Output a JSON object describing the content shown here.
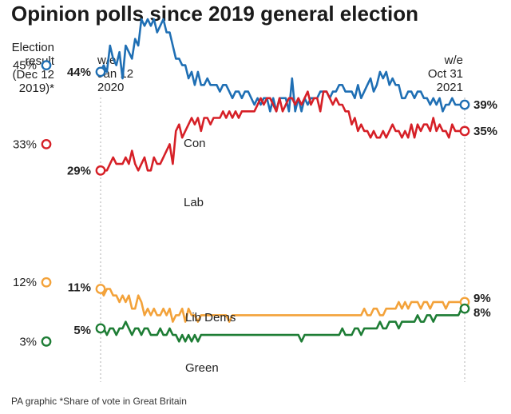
{
  "title": "Opinion polls since 2019 general election",
  "election_header": [
    "Election",
    "result",
    "(Dec 12",
    "2019)*"
  ],
  "start_header": [
    "w/e",
    "Jan 12",
    "2020"
  ],
  "end_header": [
    "w/e",
    "Oct 31",
    "2021"
  ],
  "footer": "PA graphic *Share of vote in Great Britain",
  "colors": {
    "Con": "#1f6fb4",
    "Lab": "#d62027",
    "Lib Dems": "#f3a23a",
    "Green": "#1e7d35",
    "rule": "#cccccc"
  },
  "chart_data": {
    "type": "line",
    "x_start": "2020-01-12",
    "x_end": "2021-10-31",
    "ylim": [
      0,
      55
    ],
    "grid": false,
    "election_result": {
      "Con": 45,
      "Lab": 33,
      "Lib Dems": 12,
      "Green": 3
    },
    "labels": {
      "election": {
        "Con": "45%",
        "Lab": "33%",
        "Lib Dems": "12%",
        "Green": "3%"
      },
      "start": {
        "Con": "44%",
        "Lab": "29%",
        "Lib Dems": "11%",
        "Green": "5%"
      },
      "end": {
        "Con": "39%",
        "Lab": "35%",
        "Lib Dems": "9%",
        "Green": "8%"
      }
    },
    "series": [
      {
        "name": "Con",
        "values": [
          44,
          45,
          44,
          48,
          46,
          45,
          47,
          43,
          48,
          47,
          46,
          49,
          48,
          52,
          51,
          52,
          51,
          52,
          50,
          51,
          52,
          50,
          50,
          48,
          46,
          46,
          45,
          45,
          43,
          44,
          42,
          44,
          42,
          42,
          43,
          42,
          42,
          42,
          41,
          42,
          42,
          41,
          40,
          41,
          41,
          40,
          41,
          41,
          40,
          39,
          40,
          39,
          40,
          40,
          38,
          40,
          38,
          40,
          40,
          40,
          38,
          43,
          38,
          40,
          38,
          40,
          39,
          40,
          40,
          40,
          41,
          41,
          41,
          40,
          41,
          41,
          42,
          42,
          41,
          41,
          41,
          40,
          42,
          40,
          41,
          42,
          43,
          41,
          42,
          44,
          43,
          44,
          42,
          43,
          42,
          42,
          40,
          40,
          41,
          41,
          40,
          41,
          41,
          40,
          40,
          39,
          40,
          39,
          40,
          38,
          39,
          39,
          40,
          39,
          39,
          39,
          39
        ]
      },
      {
        "name": "Lab",
        "values": [
          29,
          29,
          29,
          30,
          31,
          30,
          30,
          30,
          31,
          30,
          32,
          30,
          29,
          30,
          31,
          29,
          29,
          31,
          30,
          30,
          31,
          32,
          33,
          30,
          35,
          36,
          34,
          35,
          36,
          37,
          36,
          37,
          35,
          37,
          37,
          36,
          37,
          37,
          37,
          38,
          37,
          38,
          37,
          38,
          37,
          38,
          38,
          38,
          38,
          38,
          39,
          40,
          39,
          40,
          40,
          39,
          38,
          40,
          38,
          39,
          40,
          40,
          39,
          40,
          39,
          40,
          41,
          39,
          40,
          40,
          38,
          41,
          41,
          40,
          39,
          40,
          39,
          39,
          38,
          38,
          36,
          37,
          35,
          36,
          35,
          35,
          34,
          35,
          34,
          34,
          35,
          34,
          35,
          36,
          35,
          35,
          34,
          35,
          34,
          36,
          34,
          36,
          35,
          36,
          36,
          35,
          37,
          35,
          36,
          35,
          35,
          34,
          36,
          35,
          35,
          35,
          35
        ]
      },
      {
        "name": "Lib Dems",
        "values": [
          11,
          10,
          11,
          11,
          10,
          10,
          9,
          10,
          9,
          10,
          8,
          8,
          10,
          9,
          7,
          8,
          7,
          8,
          7,
          7,
          8,
          7,
          8,
          6,
          7,
          7,
          8,
          6,
          8,
          7,
          7,
          6,
          7,
          7,
          7,
          7,
          7,
          7,
          7,
          7,
          7,
          6,
          7,
          7,
          7,
          7,
          7,
          7,
          7,
          7,
          7,
          7,
          7,
          7,
          7,
          7,
          7,
          7,
          7,
          7,
          7,
          7,
          7,
          7,
          7,
          7,
          7,
          7,
          7,
          7,
          7,
          7,
          7,
          7,
          7,
          7,
          7,
          7,
          7,
          7,
          7,
          7,
          7,
          7,
          8,
          7,
          7,
          8,
          8,
          7,
          7,
          8,
          8,
          8,
          8,
          9,
          8,
          9,
          8,
          9,
          9,
          9,
          8,
          9,
          9,
          8,
          9,
          9,
          9,
          9,
          8,
          9,
          9,
          9,
          9,
          9,
          9
        ]
      },
      {
        "name": "Green",
        "values": [
          5,
          5,
          4,
          5,
          5,
          4,
          5,
          5,
          6,
          5,
          4,
          5,
          5,
          4,
          5,
          5,
          4,
          4,
          4,
          5,
          4,
          4,
          5,
          4,
          4,
          3,
          4,
          3,
          4,
          3,
          4,
          3,
          4,
          4,
          4,
          4,
          4,
          4,
          4,
          4,
          4,
          4,
          4,
          4,
          4,
          4,
          4,
          4,
          4,
          4,
          4,
          4,
          4,
          4,
          4,
          4,
          4,
          4,
          4,
          4,
          4,
          4,
          4,
          4,
          3,
          4,
          4,
          4,
          4,
          4,
          4,
          4,
          4,
          4,
          4,
          4,
          4,
          5,
          4,
          4,
          4,
          5,
          5,
          4,
          5,
          5,
          5,
          5,
          5,
          6,
          5,
          5,
          6,
          6,
          6,
          5,
          6,
          6,
          6,
          6,
          6,
          7,
          6,
          6,
          7,
          7,
          6,
          7,
          7,
          7,
          7,
          7,
          7,
          7,
          7,
          8,
          8
        ]
      }
    ]
  }
}
